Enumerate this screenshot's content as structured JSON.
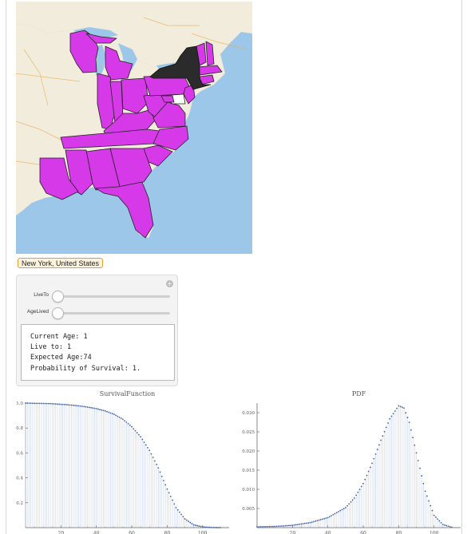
{
  "location_button": {
    "label": "New York, United States"
  },
  "map": {
    "water_color": "#9cc7e8",
    "land_color": "#f1ecdc",
    "selected_color": "#d63ae8",
    "highlight_color": "#2b2b2b"
  },
  "controls": {
    "sliders": [
      {
        "label": "LiveTo",
        "value": 1
      },
      {
        "label": "AgeLived",
        "value": 1
      }
    ],
    "output": [
      "Current Age: 1",
      "Live to: 1",
      "Expected Age:74",
      "Probability of Survival: 1."
    ]
  },
  "chart_data": [
    {
      "type": "scatter",
      "title": "SurvivalFunction",
      "xlim": [
        0,
        115
      ],
      "ylim": [
        0,
        1.0
      ],
      "xticks": [
        20,
        40,
        60,
        80,
        100
      ],
      "yticks": [
        0.2,
        0.4,
        0.6,
        0.8,
        1.0
      ],
      "ytick_labels": [
        "0.2",
        "0.4",
        "0.6",
        "0.8",
        "1.0"
      ],
      "color": "#3a5ea8",
      "points": [
        [
          0,
          1.0
        ],
        [
          5,
          0.998
        ],
        [
          10,
          0.997
        ],
        [
          15,
          0.995
        ],
        [
          20,
          0.99
        ],
        [
          25,
          0.985
        ],
        [
          30,
          0.978
        ],
        [
          35,
          0.968
        ],
        [
          40,
          0.955
        ],
        [
          45,
          0.937
        ],
        [
          50,
          0.91
        ],
        [
          55,
          0.87
        ],
        [
          60,
          0.81
        ],
        [
          65,
          0.73
        ],
        [
          70,
          0.62
        ],
        [
          75,
          0.48
        ],
        [
          80,
          0.31
        ],
        [
          85,
          0.16
        ],
        [
          90,
          0.07
        ],
        [
          95,
          0.022
        ],
        [
          100,
          0.006
        ],
        [
          105,
          0.001
        ],
        [
          110,
          0
        ]
      ]
    },
    {
      "type": "scatter",
      "title": "PDF",
      "xlim": [
        0,
        115
      ],
      "ylim": [
        0,
        0.0325
      ],
      "xticks": [
        20,
        40,
        60,
        80,
        100
      ],
      "yticks": [
        0.005,
        0.01,
        0.015,
        0.02,
        0.025,
        0.03
      ],
      "ytick_labels": [
        "0.005",
        "0.010",
        "0.015",
        "0.020",
        "0.025",
        "0.030"
      ],
      "color": "#3a5ea8",
      "points": [
        [
          0,
          0.0002
        ],
        [
          10,
          0.0003
        ],
        [
          20,
          0.0006
        ],
        [
          30,
          0.0013
        ],
        [
          40,
          0.0026
        ],
        [
          50,
          0.0052
        ],
        [
          55,
          0.0077
        ],
        [
          60,
          0.0115
        ],
        [
          65,
          0.0168
        ],
        [
          70,
          0.0228
        ],
        [
          75,
          0.0284
        ],
        [
          80,
          0.0318
        ],
        [
          83,
          0.0312
        ],
        [
          86,
          0.0275
        ],
        [
          90,
          0.0195
        ],
        [
          95,
          0.0095
        ],
        [
          100,
          0.0032
        ],
        [
          105,
          0.0008
        ],
        [
          110,
          0.0001
        ]
      ]
    }
  ]
}
